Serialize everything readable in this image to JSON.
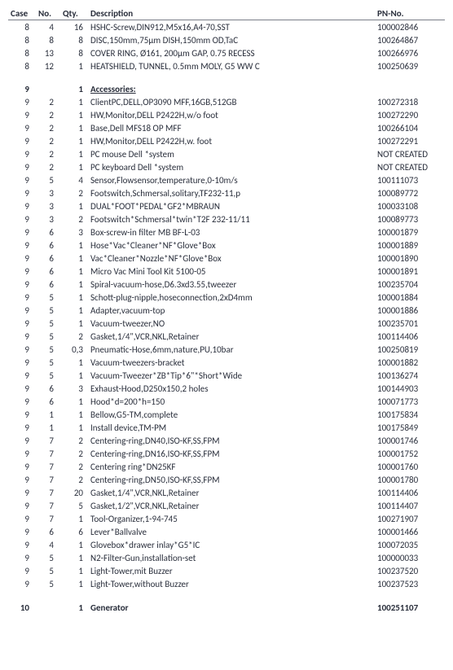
{
  "columns": {
    "case": "Case",
    "no": "No.",
    "qty": "Qty.",
    "desc": "Description",
    "pn": "PN-No."
  },
  "rows": [
    {
      "case": "8",
      "no": "4",
      "qty": "16",
      "desc": "HSHC-Screw,DIN912,M5x16,A4-70,SST",
      "pn": "100002846"
    },
    {
      "case": "8",
      "no": "8",
      "qty": "8",
      "desc": "DISC,150mm,75µm DISH,150mm OD,TaC",
      "pn": "100264867"
    },
    {
      "case": "8",
      "no": "13",
      "qty": "8",
      "desc": "COVER RING, Ø161, 200µm GAP, 0.75 RECESS",
      "pn": "100266976"
    },
    {
      "case": "8",
      "no": "12",
      "qty": "1",
      "desc": "HEATSHIELD, TUNNEL, 0.5mm MOLY, G5 WW C",
      "pn": "100250639"
    },
    {
      "section": true,
      "case": "9",
      "qty": "1",
      "desc": "Accessories:"
    },
    {
      "case": "9",
      "no": "2",
      "qty": "1",
      "desc": "ClientPC,DELL,OP3090 MFF,16GB,512GB",
      "pn": "100272318"
    },
    {
      "case": "9",
      "no": "2",
      "qty": "1",
      "desc": "HW,Monitor,DELL P2422H,w/o foot",
      "pn": "100272290"
    },
    {
      "case": "9",
      "no": "2",
      "qty": "1",
      "desc": "Base,Dell MFS18 OP MFF",
      "pn": "100266104"
    },
    {
      "case": "9",
      "no": "2",
      "qty": "1",
      "desc": "HW,Monitor,DELL P2422H,w. foot",
      "pn": "100272291"
    },
    {
      "case": "9",
      "no": "2",
      "qty": "1",
      "desc": "PC mouse Dell *system",
      "pn": "NOT CREATED"
    },
    {
      "case": "9",
      "no": "2",
      "qty": "1",
      "desc": "PC keyboard Dell *system",
      "pn": "NOT CREATED"
    },
    {
      "case": "9",
      "no": "5",
      "qty": "4",
      "desc": "Sensor,Flowsensor,temperature,0-10m/s",
      "pn": "100111073"
    },
    {
      "case": "9",
      "no": "3",
      "qty": "2",
      "desc": "Footswitch,Schmersal,solitary,TF232-11,p",
      "pn": "100089772"
    },
    {
      "case": "9",
      "no": "3",
      "qty": "1",
      "desc": "DUAL*FOOT*PEDAL*GF2*MBRAUN",
      "pn": "100033108"
    },
    {
      "case": "9",
      "no": "3",
      "qty": "2",
      "desc": "Footswitch*Schmersal*twin*T2F 232-11/11",
      "pn": "100089773"
    },
    {
      "case": "9",
      "no": "6",
      "qty": "3",
      "desc": "Box-screw-in filter MB BF-L-03",
      "pn": "100001879"
    },
    {
      "case": "9",
      "no": "6",
      "qty": "1",
      "desc": "Hose*Vac*Cleaner*NF*Glove*Box",
      "pn": "100001889"
    },
    {
      "case": "9",
      "no": "6",
      "qty": "1",
      "desc": "Vac*Cleaner*Nozzle*NF*Glove*Box",
      "pn": "100001890"
    },
    {
      "case": "9",
      "no": "6",
      "qty": "1",
      "desc": "Micro Vac Mini Tool Kit 5100-05",
      "pn": "100001891"
    },
    {
      "case": "9",
      "no": "6",
      "qty": "1",
      "desc": "Spiral-vacuum-hose,D6.3xd3.55,tweezer",
      "pn": "100235704"
    },
    {
      "case": "9",
      "no": "5",
      "qty": "1",
      "desc": "Schott-plug-nipple,hoseconnection,2xD4mm",
      "pn": "100001884"
    },
    {
      "case": "9",
      "no": "5",
      "qty": "1",
      "desc": "Adapter,vacuum-top",
      "pn": "100001886"
    },
    {
      "case": "9",
      "no": "5",
      "qty": "1",
      "desc": "Vacuum-tweezer,NO",
      "pn": "100235701"
    },
    {
      "case": "9",
      "no": "5",
      "qty": "2",
      "desc": "Gasket,1/4\",VCR,NKL,Retainer",
      "pn": "100114406"
    },
    {
      "case": "9",
      "no": "5",
      "qty": "0,3",
      "desc": "Pneumatic-Hose,6mm,nature,PU,10bar",
      "pn": "100250819"
    },
    {
      "case": "9",
      "no": "5",
      "qty": "1",
      "desc": "Vacuum-tweezers-bracket",
      "pn": "100001882"
    },
    {
      "case": "9",
      "no": "5",
      "qty": "1",
      "desc": "Vacuum-Tweezer*ZB*Tip*6\"*Short*Wide",
      "pn": "100136274"
    },
    {
      "case": "9",
      "no": "6",
      "qty": "3",
      "desc": "Exhaust-Hood,D250x150,2 holes",
      "pn": "100144903"
    },
    {
      "case": "9",
      "no": "6",
      "qty": "1",
      "desc": "Hood*d=200*h=150",
      "pn": "100071773"
    },
    {
      "case": "9",
      "no": "1",
      "qty": "1",
      "desc": "Bellow,G5-TM,complete",
      "pn": "100175834"
    },
    {
      "case": "9",
      "no": "1",
      "qty": "1",
      "desc": "Install device,TM-PM",
      "pn": "100175849"
    },
    {
      "case": "9",
      "no": "7",
      "qty": "2",
      "desc": "Centering-ring,DN40,ISO-KF,SS,FPM",
      "pn": "100001746"
    },
    {
      "case": "9",
      "no": "7",
      "qty": "2",
      "desc": "Centering-ring,DN16,ISO-KF,SS,FPM",
      "pn": "100001752"
    },
    {
      "case": "9",
      "no": "7",
      "qty": "2",
      "desc": "Centering ring*DN25KF",
      "pn": "100001760"
    },
    {
      "case": "9",
      "no": "7",
      "qty": "2",
      "desc": "Centering-ring,DN50,ISO-KF,SS,FPM",
      "pn": "100001780"
    },
    {
      "case": "9",
      "no": "7",
      "qty": "20",
      "desc": "Gasket,1/4\",VCR,NKL,Retainer",
      "pn": "100114406"
    },
    {
      "case": "9",
      "no": "7",
      "qty": "5",
      "desc": "Gasket,1/2\",VCR,NKL,Retainer",
      "pn": "100114407"
    },
    {
      "case": "9",
      "no": "7",
      "qty": "1",
      "desc": "Tool-Organizer,1-94-745",
      "pn": "100271907"
    },
    {
      "case": "9",
      "no": "6",
      "qty": "6",
      "desc": "Lever*Ballvalve",
      "pn": "100001466"
    },
    {
      "case": "9",
      "no": "4",
      "qty": "1",
      "desc": "Glovebox*drawer inlay*G5*IC",
      "pn": "100072035"
    },
    {
      "case": "9",
      "no": "5",
      "qty": "1",
      "desc": "N2-Filter-Gun,installation-set",
      "pn": "100000033"
    },
    {
      "case": "9",
      "no": "5",
      "qty": "1",
      "desc": "Light-Tower,mit Buzzer",
      "pn": "100237520"
    },
    {
      "case": "9",
      "no": "5",
      "qty": "1",
      "desc": "Light-Tower,without Buzzer",
      "pn": "100237523"
    },
    {
      "section": true,
      "case": "10",
      "qty": "1",
      "desc": "Generator",
      "pn": "100251107"
    }
  ]
}
